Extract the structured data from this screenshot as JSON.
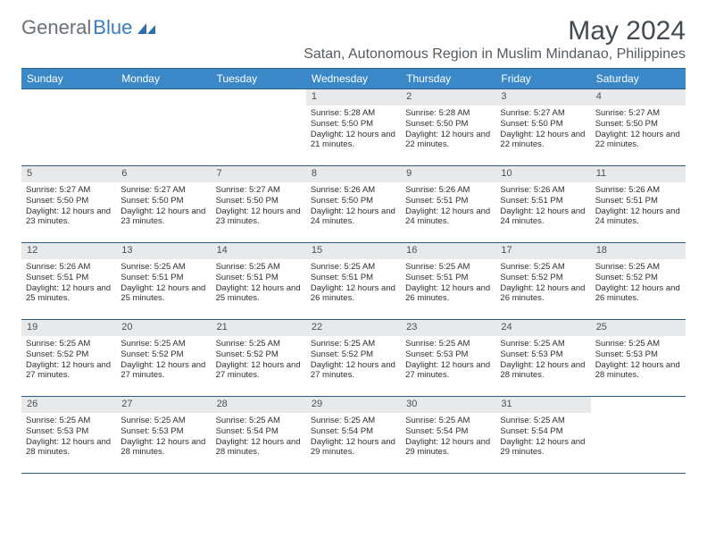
{
  "brand": {
    "word1": "General",
    "word2": "Blue"
  },
  "title": "May 2024",
  "location": "Satan, Autonomous Region in Muslim Mindanao, Philippines",
  "colors": {
    "header_bg": "#3a88c8",
    "header_border": "#2c5d87",
    "daynum_bg": "#e7e9eb",
    "text": "#2d2f31",
    "brand_gray": "#6a7178",
    "brand_blue": "#3a7cbf"
  },
  "day_headers": [
    "Sunday",
    "Monday",
    "Tuesday",
    "Wednesday",
    "Thursday",
    "Friday",
    "Saturday"
  ],
  "weeks": [
    [
      null,
      null,
      null,
      {
        "n": "1",
        "sr": "5:28 AM",
        "ss": "5:50 PM",
        "dl": "12 hours and 21 minutes."
      },
      {
        "n": "2",
        "sr": "5:28 AM",
        "ss": "5:50 PM",
        "dl": "12 hours and 22 minutes."
      },
      {
        "n": "3",
        "sr": "5:27 AM",
        "ss": "5:50 PM",
        "dl": "12 hours and 22 minutes."
      },
      {
        "n": "4",
        "sr": "5:27 AM",
        "ss": "5:50 PM",
        "dl": "12 hours and 22 minutes."
      }
    ],
    [
      {
        "n": "5",
        "sr": "5:27 AM",
        "ss": "5:50 PM",
        "dl": "12 hours and 23 minutes."
      },
      {
        "n": "6",
        "sr": "5:27 AM",
        "ss": "5:50 PM",
        "dl": "12 hours and 23 minutes."
      },
      {
        "n": "7",
        "sr": "5:27 AM",
        "ss": "5:50 PM",
        "dl": "12 hours and 23 minutes."
      },
      {
        "n": "8",
        "sr": "5:26 AM",
        "ss": "5:50 PM",
        "dl": "12 hours and 24 minutes."
      },
      {
        "n": "9",
        "sr": "5:26 AM",
        "ss": "5:51 PM",
        "dl": "12 hours and 24 minutes."
      },
      {
        "n": "10",
        "sr": "5:26 AM",
        "ss": "5:51 PM",
        "dl": "12 hours and 24 minutes."
      },
      {
        "n": "11",
        "sr": "5:26 AM",
        "ss": "5:51 PM",
        "dl": "12 hours and 24 minutes."
      }
    ],
    [
      {
        "n": "12",
        "sr": "5:26 AM",
        "ss": "5:51 PM",
        "dl": "12 hours and 25 minutes."
      },
      {
        "n": "13",
        "sr": "5:25 AM",
        "ss": "5:51 PM",
        "dl": "12 hours and 25 minutes."
      },
      {
        "n": "14",
        "sr": "5:25 AM",
        "ss": "5:51 PM",
        "dl": "12 hours and 25 minutes."
      },
      {
        "n": "15",
        "sr": "5:25 AM",
        "ss": "5:51 PM",
        "dl": "12 hours and 26 minutes."
      },
      {
        "n": "16",
        "sr": "5:25 AM",
        "ss": "5:51 PM",
        "dl": "12 hours and 26 minutes."
      },
      {
        "n": "17",
        "sr": "5:25 AM",
        "ss": "5:52 PM",
        "dl": "12 hours and 26 minutes."
      },
      {
        "n": "18",
        "sr": "5:25 AM",
        "ss": "5:52 PM",
        "dl": "12 hours and 26 minutes."
      }
    ],
    [
      {
        "n": "19",
        "sr": "5:25 AM",
        "ss": "5:52 PM",
        "dl": "12 hours and 27 minutes."
      },
      {
        "n": "20",
        "sr": "5:25 AM",
        "ss": "5:52 PM",
        "dl": "12 hours and 27 minutes."
      },
      {
        "n": "21",
        "sr": "5:25 AM",
        "ss": "5:52 PM",
        "dl": "12 hours and 27 minutes."
      },
      {
        "n": "22",
        "sr": "5:25 AM",
        "ss": "5:52 PM",
        "dl": "12 hours and 27 minutes."
      },
      {
        "n": "23",
        "sr": "5:25 AM",
        "ss": "5:53 PM",
        "dl": "12 hours and 27 minutes."
      },
      {
        "n": "24",
        "sr": "5:25 AM",
        "ss": "5:53 PM",
        "dl": "12 hours and 28 minutes."
      },
      {
        "n": "25",
        "sr": "5:25 AM",
        "ss": "5:53 PM",
        "dl": "12 hours and 28 minutes."
      }
    ],
    [
      {
        "n": "26",
        "sr": "5:25 AM",
        "ss": "5:53 PM",
        "dl": "12 hours and 28 minutes."
      },
      {
        "n": "27",
        "sr": "5:25 AM",
        "ss": "5:53 PM",
        "dl": "12 hours and 28 minutes."
      },
      {
        "n": "28",
        "sr": "5:25 AM",
        "ss": "5:54 PM",
        "dl": "12 hours and 28 minutes."
      },
      {
        "n": "29",
        "sr": "5:25 AM",
        "ss": "5:54 PM",
        "dl": "12 hours and 29 minutes."
      },
      {
        "n": "30",
        "sr": "5:25 AM",
        "ss": "5:54 PM",
        "dl": "12 hours and 29 minutes."
      },
      {
        "n": "31",
        "sr": "5:25 AM",
        "ss": "5:54 PM",
        "dl": "12 hours and 29 minutes."
      },
      null
    ]
  ],
  "labels": {
    "sunrise": "Sunrise:",
    "sunset": "Sunset:",
    "daylight": "Daylight:"
  }
}
